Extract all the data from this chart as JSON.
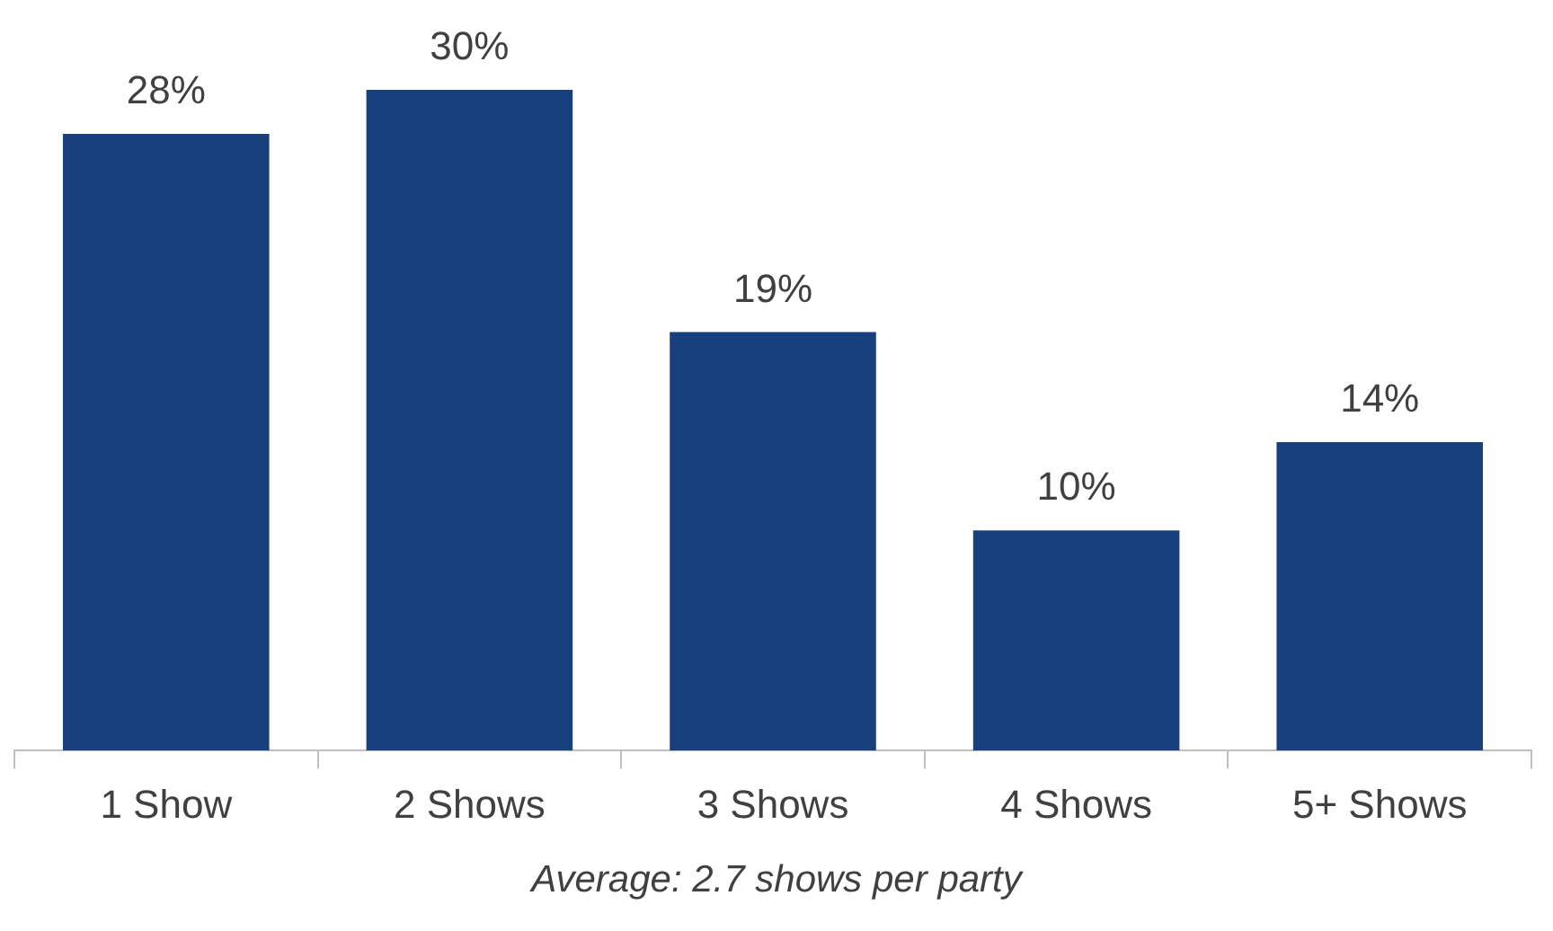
{
  "chart_data": {
    "type": "bar",
    "categories": [
      "1 Show",
      "2 Shows",
      "3 Shows",
      "4 Shows",
      "5+ Shows"
    ],
    "values": [
      28,
      30,
      19,
      10,
      14
    ],
    "value_labels": [
      "28%",
      "30%",
      "19%",
      "10%",
      "14%"
    ],
    "color": "#17407c",
    "grid": false,
    "legend": false,
    "annotations": [
      "Average: 2.7 shows per party"
    ]
  }
}
